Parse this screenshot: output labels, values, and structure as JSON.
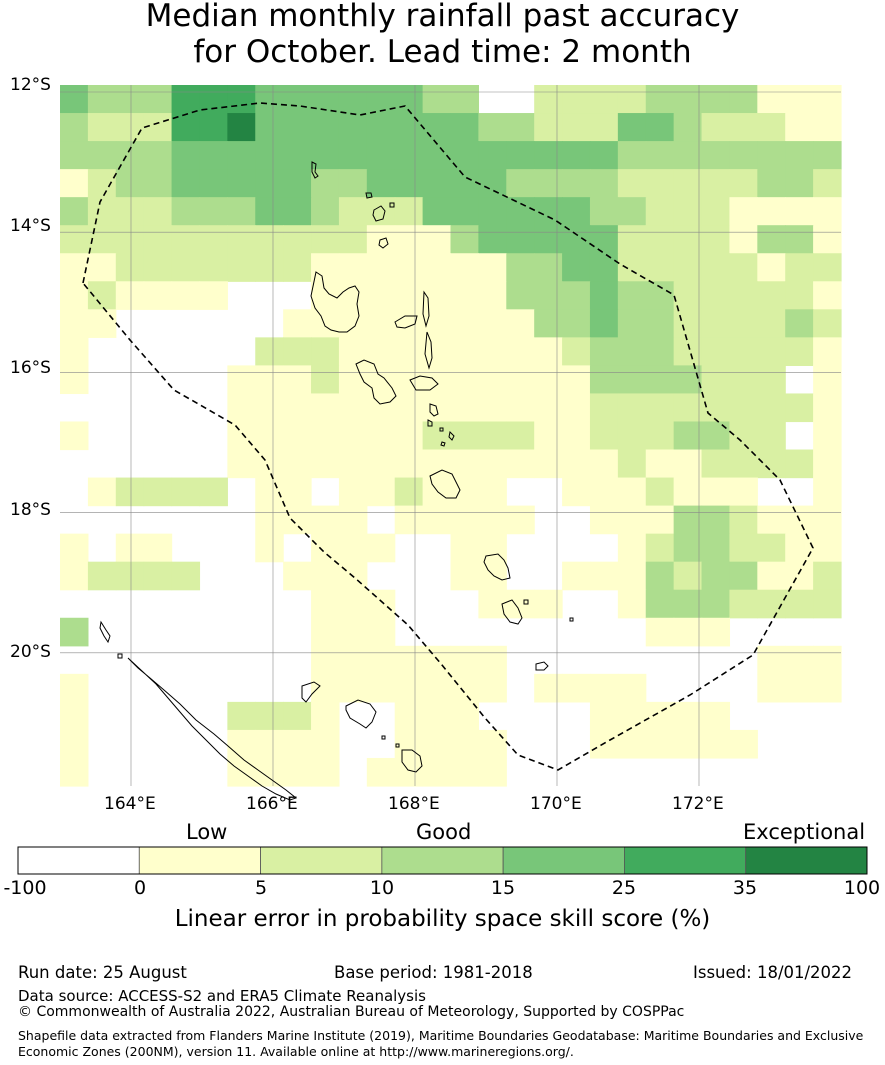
{
  "title": {
    "line1": "Median monthly rainfall past accuracy",
    "line2": "for October. Lead time: 2 month"
  },
  "map": {
    "lon_range": [
      163,
      174
    ],
    "lat_range": [
      -21.9,
      -11.9
    ],
    "lat_ticks": [
      {
        "value": -12,
        "label": "12°S"
      },
      {
        "value": -14,
        "label": "14°S"
      },
      {
        "value": -16,
        "label": "16°S"
      },
      {
        "value": -18,
        "label": "18°S"
      },
      {
        "value": -20,
        "label": "20°S"
      }
    ],
    "lon_ticks": [
      {
        "value": 164,
        "label": "164°E"
      },
      {
        "value": 166,
        "label": "166°E"
      },
      {
        "value": 168,
        "label": "168°E"
      },
      {
        "value": 170,
        "label": "170°E"
      },
      {
        "value": 172,
        "label": "172°E"
      }
    ],
    "grid": true,
    "eez_boundary_style": "dashed black",
    "skill_grid": {
      "description_levels": "0=<0, 1=0-5, 2=5-10, 3=10-15, 4=15-25, 5=25-35, 6=35-100",
      "rows": [
        "4333555444444330022223333111",
        "3222556444444443322244322211",
        "3333444444444444444433333333",
        "1233444443344444333322222332",
        "3222333443222444444332221111",
        "2222222222211134444422221331",
        "1122222221111111334422222122",
        "1211110001111111333433222221",
        "1100000011111111133433222232",
        "1000000222111111112333222221",
        "1000001112111111111333322201",
        "0000001111111111111222222221",
        "1000001111111222211222332201",
        "0000001111111111111121122221",
        "0122220110112111001112111001",
        "0000000111101111100111332111",
        "1011000101110011000012332211",
        "1222200011100011001113233112",
        "0000000001110001110013332222",
        "3000000001110000000001110000",
        "0000000001111111000000000111",
        "1000000001111111011110000111",
        "1000002221001110000111110000",
        "1000001111001111000111111000",
        "1000001111011111000000000000"
      ]
    }
  },
  "colorbar": {
    "words": [
      "Low",
      "Good",
      "Exceptional"
    ],
    "ticks": [
      "-100",
      "0",
      "5",
      "10",
      "15",
      "25",
      "35",
      "100"
    ],
    "colors": [
      "#ffffff",
      "#ffffcc",
      "#d9f0a3",
      "#addd8e",
      "#78c679",
      "#41ab5d",
      "#238443"
    ],
    "label": "Linear error in probability space skill score (%)"
  },
  "footer": {
    "run_date": "Run date: 25 August",
    "base_period": "Base period: 1981-2018",
    "issued": "Issued: 18/01/2022",
    "data_source": "Data source: ACCESS-S2 and ERA5 Climate Reanalysis",
    "copyright": "© Commonwealth of Australia 2022, Australian Bureau of Meteorology, Supported by COSPPac",
    "shapefile_line1": "Shapefile data extracted from Flanders Marine Institute (2019), Maritime Boundaries Geodatabase: Maritime Boundaries and Exclusive",
    "shapefile_line2": "Economic Zones (200NM), version 11. Available online at http://www.marineregions.org/."
  }
}
